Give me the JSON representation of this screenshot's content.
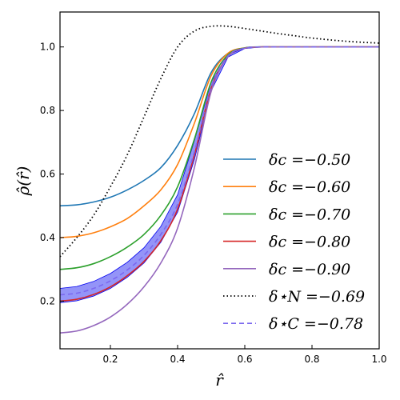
{
  "chart_data": {
    "type": "line",
    "xlabel": "r̂",
    "ylabel": "ρ̂(r̂)",
    "xlim": [
      0.05,
      1.0
    ],
    "ylim": [
      0.05,
      1.11
    ],
    "x_ticks": [
      "0.2",
      "0.4",
      "0.6",
      "0.8",
      "1.0"
    ],
    "y_ticks": [
      "0.2",
      "0.4",
      "0.6",
      "0.8",
      "1.0"
    ],
    "grid": false,
    "legend_position": "center-right",
    "series": [
      {
        "name": "δc =−0.50",
        "color": "#1f77b4",
        "style": "solid",
        "x": [
          0.05,
          0.1,
          0.15,
          0.2,
          0.25,
          0.3,
          0.35,
          0.4,
          0.45,
          0.5,
          0.55,
          0.6,
          0.65,
          0.7,
          0.8,
          0.9,
          1.0
        ],
        "y": [
          0.5,
          0.503,
          0.512,
          0.527,
          0.55,
          0.58,
          0.62,
          0.69,
          0.79,
          0.92,
          0.98,
          0.997,
          1.0,
          1.0,
          1.0,
          1.0,
          1.0
        ]
      },
      {
        "name": "δc =−0.60",
        "color": "#ff7f0e",
        "style": "solid",
        "x": [
          0.05,
          0.1,
          0.15,
          0.2,
          0.25,
          0.3,
          0.35,
          0.4,
          0.45,
          0.5,
          0.55,
          0.6,
          0.65,
          0.7,
          0.8,
          0.9,
          1.0
        ],
        "y": [
          0.4,
          0.404,
          0.415,
          0.434,
          0.46,
          0.5,
          0.55,
          0.63,
          0.76,
          0.91,
          0.98,
          0.997,
          1.0,
          1.0,
          1.0,
          1.0,
          1.0
        ]
      },
      {
        "name": "δc =−0.70",
        "color": "#2ca02c",
        "style": "solid",
        "x": [
          0.05,
          0.1,
          0.15,
          0.2,
          0.25,
          0.3,
          0.35,
          0.4,
          0.45,
          0.5,
          0.55,
          0.6,
          0.65,
          0.7,
          0.8,
          0.9,
          1.0
        ],
        "y": [
          0.3,
          0.305,
          0.318,
          0.34,
          0.37,
          0.41,
          0.47,
          0.56,
          0.71,
          0.89,
          0.975,
          0.997,
          1.0,
          1.0,
          1.0,
          1.0,
          1.0
        ]
      },
      {
        "name": "δc =−0.80",
        "color": "#d62728",
        "style": "solid",
        "x": [
          0.05,
          0.1,
          0.15,
          0.2,
          0.25,
          0.3,
          0.35,
          0.4,
          0.45,
          0.5,
          0.55,
          0.6,
          0.65,
          0.7,
          0.8,
          0.9,
          1.0
        ],
        "y": [
          0.2,
          0.206,
          0.221,
          0.245,
          0.28,
          0.325,
          0.39,
          0.49,
          0.66,
          0.87,
          0.97,
          0.996,
          1.0,
          1.0,
          1.0,
          1.0,
          1.0
        ]
      },
      {
        "name": "δc =−0.90",
        "color": "#9467bd",
        "style": "solid",
        "x": [
          0.05,
          0.1,
          0.15,
          0.2,
          0.25,
          0.3,
          0.35,
          0.4,
          0.45,
          0.5,
          0.55,
          0.6,
          0.65,
          0.7,
          0.8,
          0.9,
          1.0
        ],
        "y": [
          0.1,
          0.106,
          0.123,
          0.15,
          0.19,
          0.245,
          0.32,
          0.43,
          0.62,
          0.86,
          0.97,
          0.996,
          1.0,
          1.0,
          1.0,
          1.0,
          1.0
        ]
      },
      {
        "name": "δ⋆N =−0.69",
        "color": "#000000",
        "style": "dotted",
        "x": [
          0.05,
          0.1,
          0.15,
          0.2,
          0.25,
          0.3,
          0.35,
          0.4,
          0.45,
          0.5,
          0.55,
          0.6,
          0.65,
          0.7,
          0.75,
          0.8,
          0.9,
          1.0
        ],
        "y": [
          0.34,
          0.4,
          0.47,
          0.56,
          0.66,
          0.78,
          0.9,
          1.0,
          1.05,
          1.065,
          1.065,
          1.058,
          1.05,
          1.042,
          1.035,
          1.028,
          1.018,
          1.012
        ]
      },
      {
        "name": "δ⋆C =−0.78",
        "color": "#7b68ee",
        "style": "dashed",
        "x": [
          0.05,
          0.1,
          0.15,
          0.2,
          0.25,
          0.3,
          0.35,
          0.4,
          0.45,
          0.5,
          0.55,
          0.6,
          0.65,
          0.7,
          0.8,
          0.9,
          1.0
        ],
        "y": [
          0.22,
          0.225,
          0.24,
          0.264,
          0.298,
          0.344,
          0.41,
          0.505,
          0.67,
          0.875,
          0.972,
          0.996,
          1.0,
          1.0,
          1.0,
          1.0,
          1.0
        ],
        "band": {
          "lower": [
            0.195,
            0.201,
            0.216,
            0.24,
            0.275,
            0.32,
            0.385,
            0.48,
            0.645,
            0.862,
            0.968,
            0.995,
            1.0,
            1.0,
            1.0,
            1.0,
            1.0
          ],
          "upper": [
            0.24,
            0.246,
            0.262,
            0.287,
            0.322,
            0.368,
            0.435,
            0.535,
            0.705,
            0.89,
            0.976,
            0.997,
            1.0,
            1.0,
            1.0,
            1.0,
            1.0
          ],
          "color": "#0000ee"
        }
      }
    ]
  }
}
